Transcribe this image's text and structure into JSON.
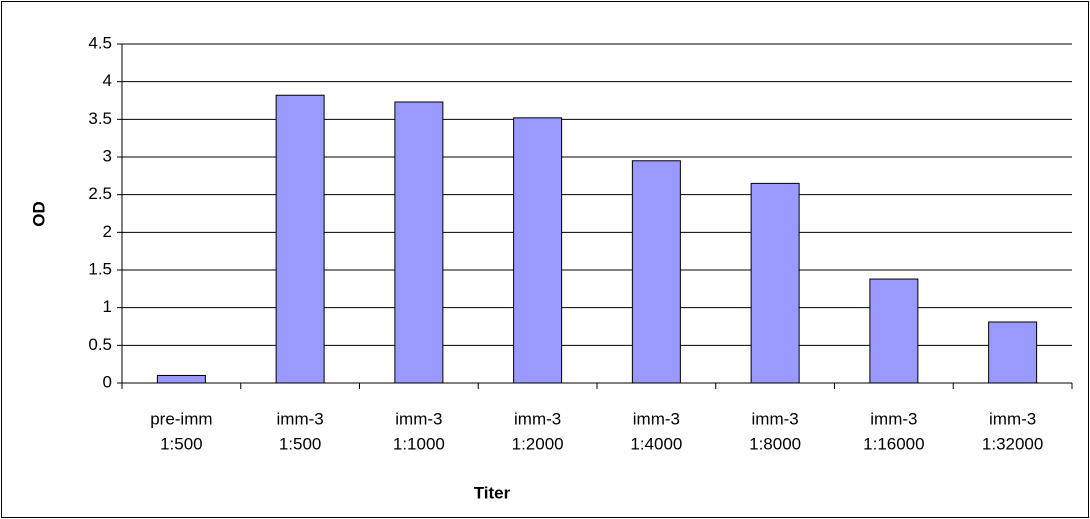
{
  "chart_data": {
    "type": "bar",
    "x_label": "Titer",
    "y_label": "OD",
    "categories": [
      [
        "pre-imm",
        "1:500"
      ],
      [
        "imm-3",
        "1:500"
      ],
      [
        "imm-3",
        "1:1000"
      ],
      [
        "imm-3",
        "1:2000"
      ],
      [
        "imm-3",
        "1:4000"
      ],
      [
        "imm-3",
        "1:8000"
      ],
      [
        "imm-3",
        "1:16000"
      ],
      [
        "imm-3",
        "1:32000"
      ]
    ],
    "values": [
      0.1,
      3.82,
      3.73,
      3.52,
      2.95,
      2.65,
      1.38,
      0.81
    ],
    "color": "#9999ff",
    "ylim": [
      0,
      4.5
    ],
    "yticks": [
      0,
      0.5,
      1,
      1.5,
      2,
      2.5,
      3,
      3.5,
      4,
      4.5
    ],
    "grid": true
  }
}
